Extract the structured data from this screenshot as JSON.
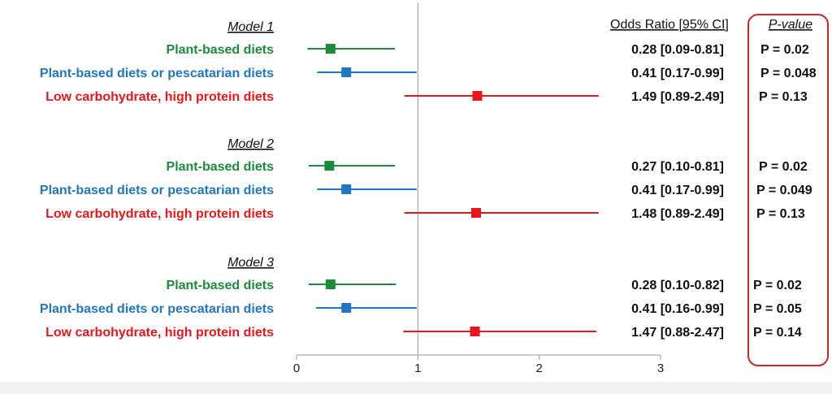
{
  "chart_data": {
    "type": "forest",
    "header": {
      "or_label": "Odds Ratio [95% CI]",
      "p_label": "P-value"
    },
    "xticks": [
      0,
      1,
      2,
      3
    ],
    "xlim": [
      0,
      3
    ],
    "reference_line": 1,
    "colors": {
      "plant": "#1a8c3a",
      "pesc": "#1f77c4",
      "lchp": "#e8171b",
      "highlight": "#d4212a"
    },
    "models": [
      {
        "title": "Model 1",
        "rows": [
          {
            "label": "Plant-based diets",
            "color_key": "plant",
            "or": 0.28,
            "lo": 0.09,
            "hi": 0.81,
            "ci_text": "0.28 [0.09-0.81]",
            "p_text": "P = 0.02"
          },
          {
            "label": "Plant-based diets or pescatarian diets",
            "color_key": "pesc",
            "or": 0.41,
            "lo": 0.17,
            "hi": 0.99,
            "ci_text": "0.41 [0.17-0.99]",
            "p_text": "P = 0.048"
          },
          {
            "label": "Low carbohydrate, high protein diets",
            "color_key": "lchp",
            "or": 1.49,
            "lo": 0.89,
            "hi": 2.49,
            "ci_text": "1.49 [0.89-2.49]",
            "p_text": "P = 0.13"
          }
        ]
      },
      {
        "title": "Model 2",
        "rows": [
          {
            "label": "Plant-based diets",
            "color_key": "plant",
            "or": 0.27,
            "lo": 0.1,
            "hi": 0.81,
            "ci_text": "0.27 [0.10-0.81]",
            "p_text": "P = 0.02"
          },
          {
            "label": "Plant-based diets or pescatarian diets",
            "color_key": "pesc",
            "or": 0.41,
            "lo": 0.17,
            "hi": 0.99,
            "ci_text": "0.41 [0.17-0.99]",
            "p_text": "P = 0.049"
          },
          {
            "label": "Low carbohydrate, high protein diets",
            "color_key": "lchp",
            "or": 1.48,
            "lo": 0.89,
            "hi": 2.49,
            "ci_text": "1.48 [0.89-2.49]",
            "p_text": "P = 0.13"
          }
        ]
      },
      {
        "title": "Model 3",
        "rows": [
          {
            "label": "Plant-based diets",
            "color_key": "plant",
            "or": 0.28,
            "lo": 0.1,
            "hi": 0.82,
            "ci_text": "0.28 [0.10-0.82]",
            "p_text": "P = 0.02"
          },
          {
            "label": "Plant-based diets or pescatarian diets",
            "color_key": "pesc",
            "or": 0.41,
            "lo": 0.16,
            "hi": 0.99,
            "ci_text": "0.41 [0.16-0.99]",
            "p_text": "P = 0.05"
          },
          {
            "label": "Low carbohydrate, high protein diets",
            "color_key": "lchp",
            "or": 1.47,
            "lo": 0.88,
            "hi": 2.47,
            "ci_text": "1.47 [0.88-2.47]",
            "p_text": "P = 0.14"
          }
        ]
      }
    ]
  }
}
